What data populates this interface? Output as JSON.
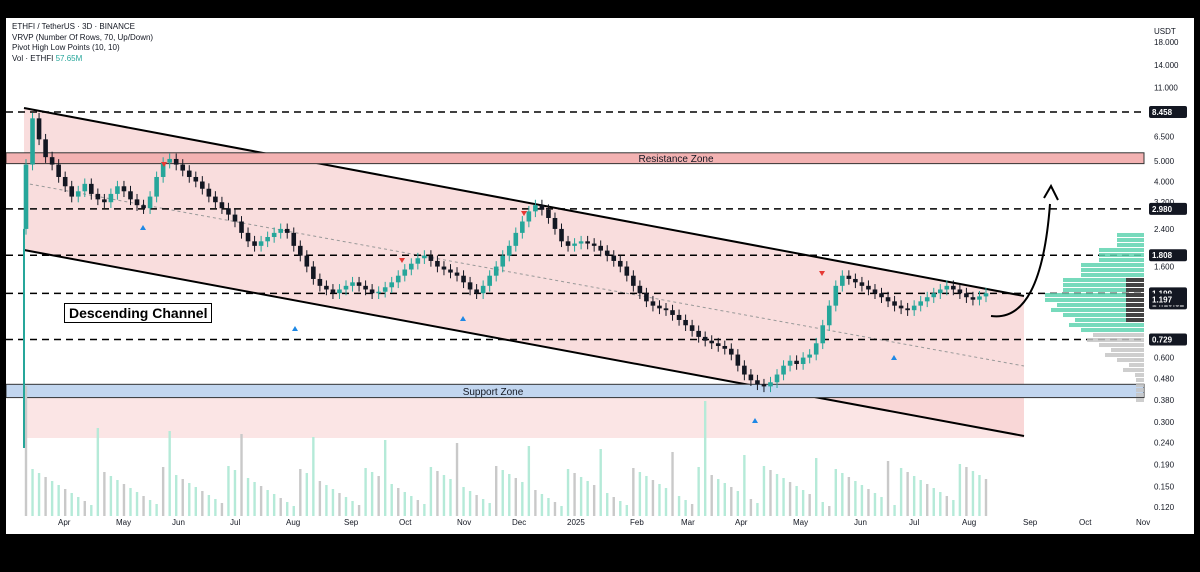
{
  "header": {
    "symbol_line": "ETHFI / TetherUS · 3D · BINANCE",
    "vrvp_line": "VRVP (Number Of Rows, 70, Up/Down)",
    "pivot_line": "Pivot High Low Points (10, 10)",
    "vol_label": "Vol · ETHFI",
    "vol_value": "57.65M"
  },
  "annotations": {
    "resistance_zone": "Resistance Zone",
    "support_zone": "Support Zone",
    "channel_label": "Descending Channel"
  },
  "colors": {
    "bull": "#26a69a",
    "bull_light": "#5fd3b0",
    "bear": "#131722",
    "channel_fill": "#f8d4d4",
    "resistance_fill": "#f3b2b2",
    "support_fill": "#c2d6ef",
    "pivot_high": "#e53935",
    "pivot_low": "#1e88e5"
  },
  "chart_data": {
    "type": "candlestick",
    "price_axis_title": "USDT",
    "price_scale": "log",
    "price_ticks": [
      "18.000",
      "14.000",
      "11.000",
      "6.500",
      "5.000",
      "4.000",
      "3.200",
      "2.400",
      "1.600",
      "0.600",
      "0.480",
      "0.380",
      "0.300",
      "0.240",
      "0.190",
      "0.150",
      "0.120"
    ],
    "price_tags": [
      {
        "value": "8.458",
        "style": "dark"
      },
      {
        "value": "2.980",
        "style": "dark"
      },
      {
        "value": "1.808",
        "style": "dark"
      },
      {
        "value": "1.199",
        "style": "dark"
      },
      {
        "value": "14:10:52",
        "style": "dark"
      },
      {
        "value": "1.197",
        "style": "dark"
      },
      {
        "value": "0.729",
        "style": "dark"
      }
    ],
    "x_labels": [
      "Apr",
      "May",
      "Jun",
      "Jul",
      "Aug",
      "Sep",
      "Oct",
      "Nov",
      "Dec",
      "2025",
      "Feb",
      "Mar",
      "Apr",
      "May",
      "Jun",
      "Jul",
      "Aug",
      "Sep",
      "Oct",
      "Nov"
    ],
    "dashed_levels": [
      8.458,
      2.98,
      1.808,
      1.199,
      0.729
    ],
    "resistance_zone": [
      4.85,
      5.45
    ],
    "support_zone": [
      0.39,
      0.45
    ],
    "channel": {
      "upper": [
        [
          "Apr 2024",
          8.6
        ],
        [
          "Aug 2025",
          1.18
        ]
      ],
      "lower": [
        [
          "Apr 2024",
          1.9
        ],
        [
          "Sep 2025",
          0.26
        ]
      ]
    },
    "projection": "breakout arrow towards 5.000",
    "pivot_highs": [
      [
        "Jun 2024",
        5.5
      ],
      [
        "Oct 2024",
        1.95
      ],
      [
        "Dec 2024",
        3.3
      ],
      [
        "May 2025",
        1.75
      ]
    ],
    "pivot_lows": [
      [
        "May 2024",
        3.0
      ],
      [
        "Aug 2024",
        0.95
      ],
      [
        "Nov 2024",
        1.0
      ],
      [
        "Apr 2025",
        0.37
      ],
      [
        "Jun 2025",
        0.73
      ]
    ],
    "closes": [
      4.8,
      7.9,
      6.3,
      5.2,
      4.8,
      4.2,
      3.8,
      3.4,
      3.6,
      3.9,
      3.5,
      3.3,
      3.2,
      3.5,
      3.8,
      3.6,
      3.3,
      3.1,
      3.0,
      3.4,
      4.2,
      4.9,
      5.1,
      4.8,
      4.5,
      4.2,
      4.0,
      3.7,
      3.4,
      3.2,
      3.0,
      2.8,
      2.6,
      2.3,
      2.1,
      2.0,
      2.1,
      2.2,
      2.3,
      2.4,
      2.3,
      2.0,
      1.8,
      1.6,
      1.4,
      1.3,
      1.25,
      1.2,
      1.25,
      1.3,
      1.35,
      1.3,
      1.25,
      1.2,
      1.22,
      1.28,
      1.35,
      1.45,
      1.55,
      1.65,
      1.75,
      1.8,
      1.7,
      1.6,
      1.55,
      1.5,
      1.45,
      1.35,
      1.25,
      1.2,
      1.3,
      1.45,
      1.6,
      1.8,
      2.0,
      2.3,
      2.6,
      2.9,
      3.1,
      2.95,
      2.7,
      2.4,
      2.1,
      2.0,
      2.05,
      2.1,
      2.05,
      2.0,
      1.9,
      1.8,
      1.7,
      1.6,
      1.45,
      1.3,
      1.2,
      1.1,
      1.05,
      1.02,
      1.0,
      0.95,
      0.9,
      0.85,
      0.8,
      0.75,
      0.72,
      0.7,
      0.68,
      0.66,
      0.62,
      0.55,
      0.5,
      0.47,
      0.45,
      0.44,
      0.46,
      0.5,
      0.55,
      0.58,
      0.56,
      0.6,
      0.62,
      0.7,
      0.85,
      1.05,
      1.3,
      1.45,
      1.4,
      1.35,
      1.3,
      1.25,
      1.2,
      1.15,
      1.1,
      1.05,
      1.02,
      1.0,
      1.05,
      1.1,
      1.15,
      1.2,
      1.25,
      1.3,
      1.25,
      1.2,
      1.15,
      1.12,
      1.16,
      1.2
    ]
  }
}
